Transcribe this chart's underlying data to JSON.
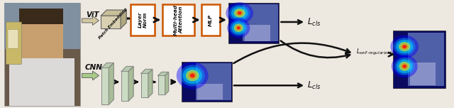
{
  "fig_width": 6.4,
  "fig_height": 1.52,
  "dpi": 100,
  "bg_color": "#ede8e0",
  "vit_label": "ViT",
  "cnn_label": "CNN",
  "patch_label": "Patch Embedding",
  "box_edge_color": "#cc5500",
  "box_face_color": "#ffffff",
  "cnn_panel_face": "#d0ddc8",
  "cnn_panel_edge": "#888888",
  "cls_label": "$\\mathit{L}_{cls}$",
  "self_reg_label": "$\\mathit{L}_{self\\text{-} regularization}$",
  "photo_bg": "#7a6a5a",
  "photo_face": "#c8a878",
  "photo_shirt": "#e8e4de",
  "photo_bg2": "#5a6070",
  "vit_arrow_color": "#d4c8a0",
  "cnn_arrow_color": "#a8cc88",
  "arrow_dark": "#111111"
}
